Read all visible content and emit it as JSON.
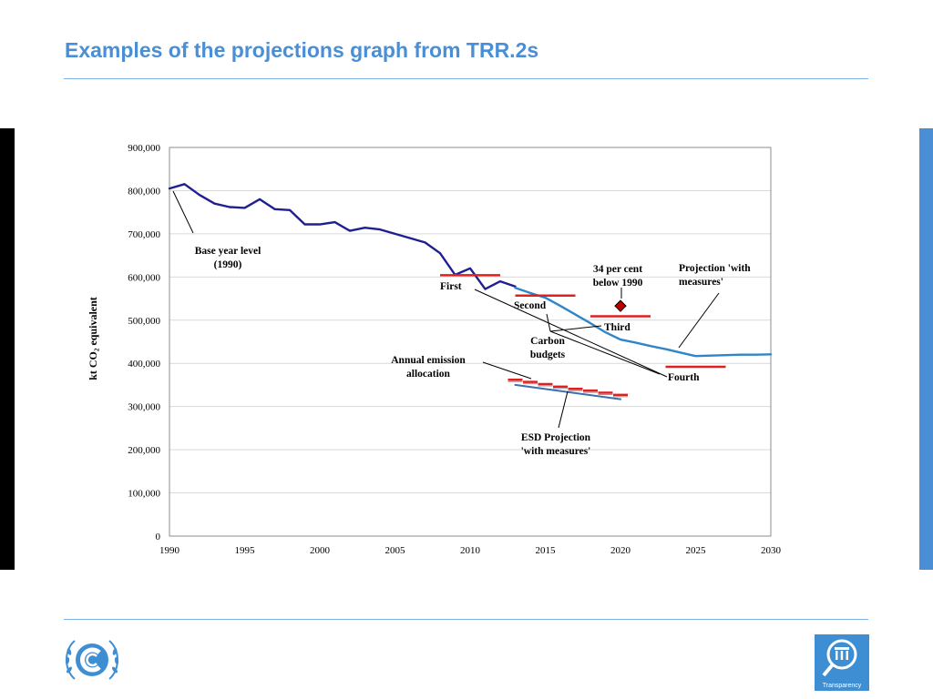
{
  "slide": {
    "title": "Examples of the projections graph from TRR.2s",
    "transparency_label": "Transparency"
  },
  "colors": {
    "title": "#4a8fd6",
    "historic": "#1f1f8f",
    "projection": "#2e86c8",
    "budget": "#e02020",
    "esd_projection": "#3a6fb0",
    "marker": "#c00000"
  },
  "chart_data": {
    "type": "line",
    "ylabel": "kt CO₂ equivalent",
    "xlim": [
      1990,
      2030
    ],
    "ylim": [
      0,
      900000
    ],
    "x_ticks": [
      1990,
      1995,
      2000,
      2005,
      2010,
      2015,
      2020,
      2025,
      2030
    ],
    "y_ticks": [
      "0",
      "100,000",
      "200,000",
      "300,000",
      "400,000",
      "500,000",
      "600,000",
      "700,000",
      "800,000",
      "900,000"
    ],
    "grid": true,
    "series": [
      {
        "key": "historic",
        "x": [
          1990,
          1991,
          1992,
          1993,
          1994,
          1995,
          1996,
          1997,
          1998,
          1999,
          2000,
          2001,
          2002,
          2003,
          2004,
          2005,
          2006,
          2007,
          2008,
          2009,
          2010,
          2011,
          2012,
          2013
        ],
        "y": [
          805000,
          815000,
          790000,
          770000,
          762000,
          760000,
          780000,
          757000,
          755000,
          722000,
          722000,
          727000,
          707000,
          714000,
          710000,
          700000,
          690000,
          680000,
          655000,
          605000,
          620000,
          572000,
          590000,
          578000
        ]
      },
      {
        "key": "projection",
        "x": [
          2013,
          2014,
          2015,
          2016,
          2017,
          2018,
          2019,
          2020,
          2021,
          2022,
          2023,
          2024,
          2025,
          2026,
          2027,
          2028,
          2029,
          2030
        ],
        "y": [
          575000,
          563000,
          552000,
          533000,
          513000,
          493000,
          472000,
          455000,
          448000,
          440000,
          433000,
          425000,
          417000,
          418000,
          419000,
          420000,
          420000,
          421000
        ]
      },
      {
        "key": "esd_projection",
        "x": [
          2013,
          2020
        ],
        "y": [
          350000,
          317000
        ]
      }
    ],
    "carbon_budgets": [
      {
        "label": "First",
        "x": [
          2008,
          2012
        ],
        "y": 604000
      },
      {
        "label": "Second",
        "x": [
          2013,
          2017
        ],
        "y": 557000
      },
      {
        "label": "Third",
        "x": [
          2018,
          2022
        ],
        "y": 509000
      },
      {
        "label": "Fourth",
        "x": [
          2023,
          2027
        ],
        "y": 392000
      }
    ],
    "annual_allocation": [
      {
        "x": 2013,
        "y": 362000
      },
      {
        "x": 2014,
        "y": 357000
      },
      {
        "x": 2015,
        "y": 352000
      },
      {
        "x": 2016,
        "y": 346000
      },
      {
        "x": 2017,
        "y": 341000
      },
      {
        "x": 2018,
        "y": 337000
      },
      {
        "x": 2019,
        "y": 332000
      },
      {
        "x": 2020,
        "y": 327000
      }
    ],
    "target_marker": {
      "x": 2020,
      "y": 533000
    },
    "annotations": {
      "base_year": [
        "Base year level",
        "(1990)"
      ],
      "first": "First",
      "second": "Second",
      "third": "Third",
      "fourth": "Fourth",
      "carbon_budgets": [
        "Carbon",
        "budgets"
      ],
      "target": [
        "34 per cent",
        "below 1990"
      ],
      "projection": [
        "Projection 'with",
        "measures'"
      ],
      "annual": [
        "Annual emission",
        "allocation"
      ],
      "esd": [
        "ESD Projection",
        "'with measures'"
      ]
    }
  }
}
